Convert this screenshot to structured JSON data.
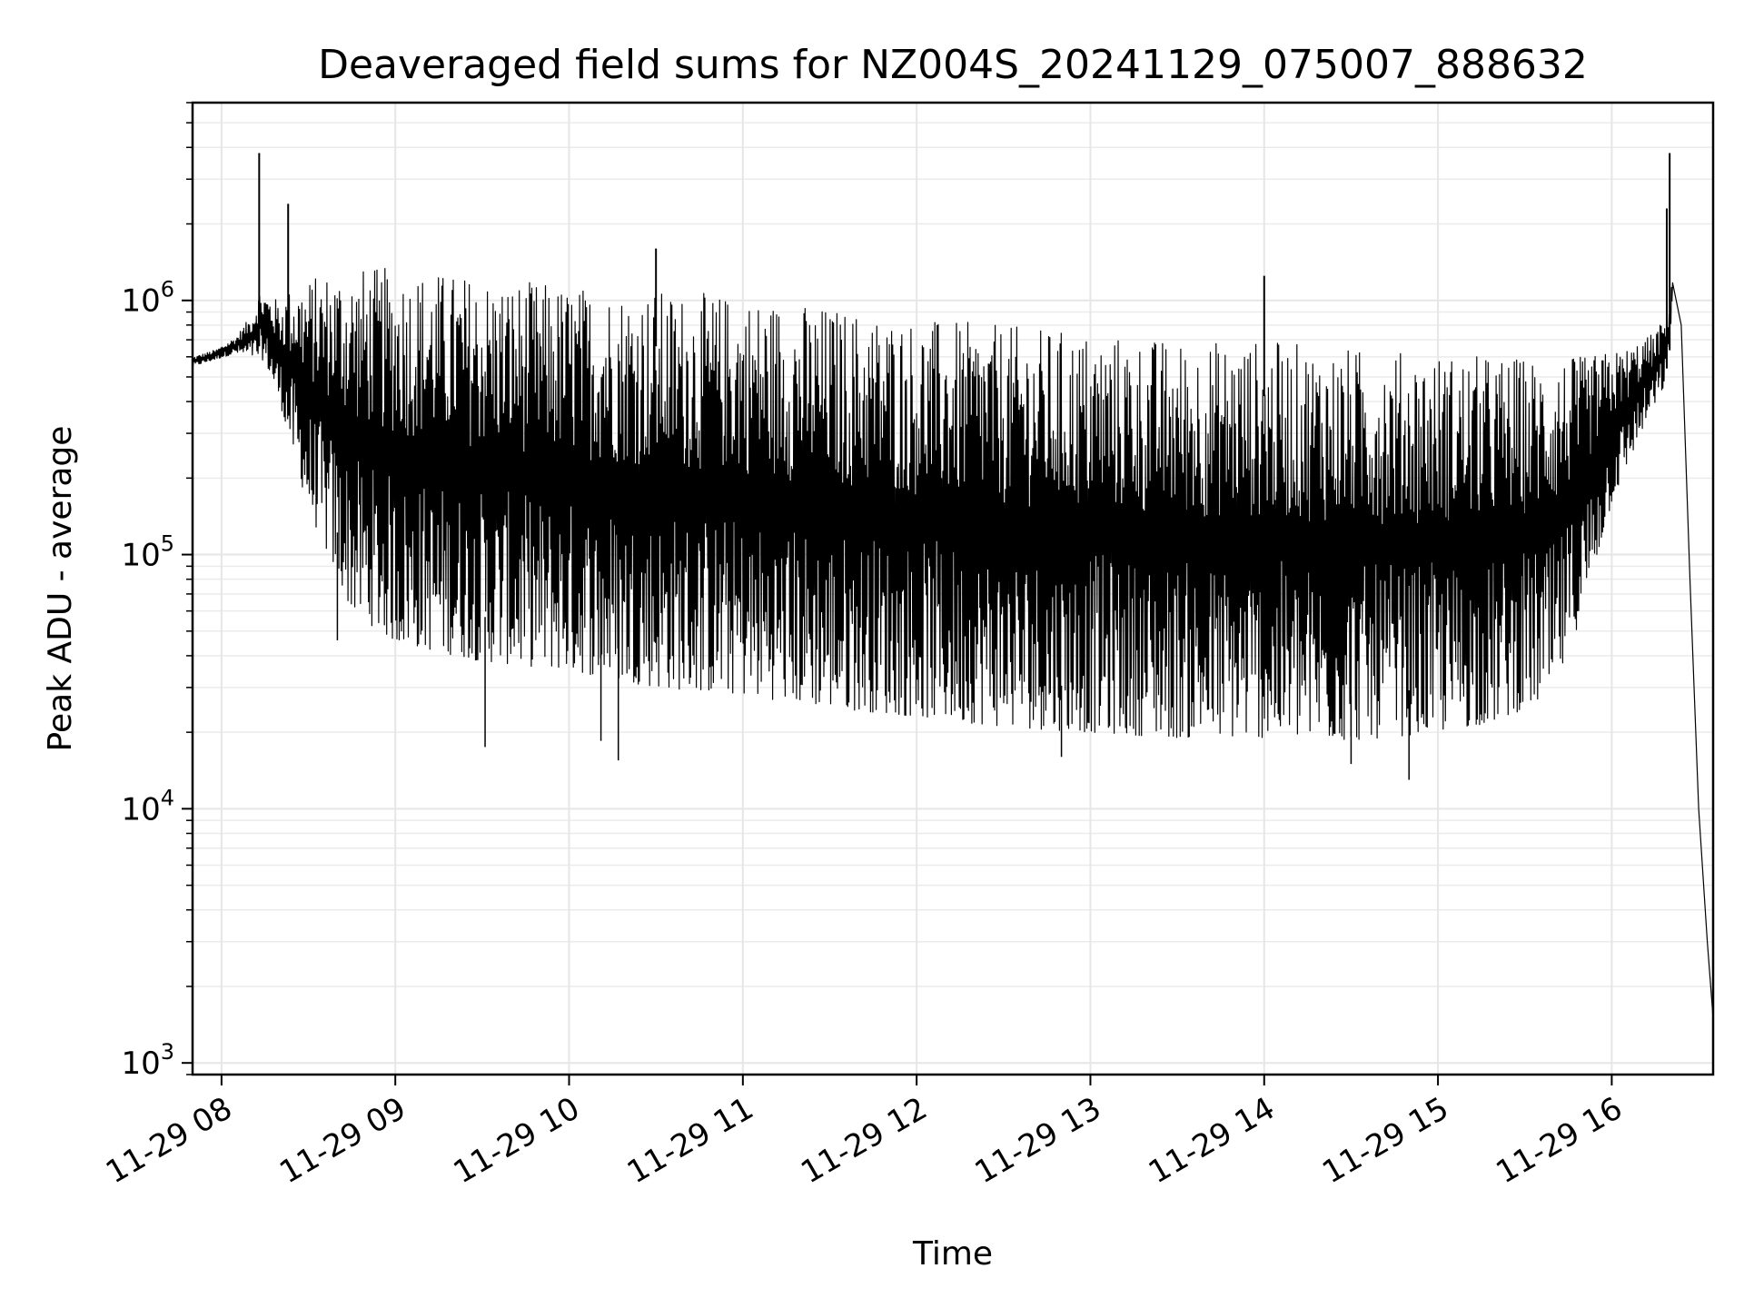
{
  "chart_data": {
    "type": "line",
    "title": "Deaveraged field sums for NZ004S_20241129_075007_888632",
    "xlabel": "Time",
    "ylabel": "Peak ADU - average",
    "yscale": "log",
    "ylim": [
      900,
      6000000
    ],
    "xlim": [
      "2024-11-29 07:50:00",
      "2024-11-29 16:35:00"
    ],
    "x_ticks": [
      {
        "t": "2024-11-29 08:00",
        "label": "11-29 08"
      },
      {
        "t": "2024-11-29 09:00",
        "label": "11-29 09"
      },
      {
        "t": "2024-11-29 10:00",
        "label": "11-29 10"
      },
      {
        "t": "2024-11-29 11:00",
        "label": "11-29 11"
      },
      {
        "t": "2024-11-29 12:00",
        "label": "11-29 12"
      },
      {
        "t": "2024-11-29 13:00",
        "label": "11-29 13"
      },
      {
        "t": "2024-11-29 14:00",
        "label": "11-29 14"
      },
      {
        "t": "2024-11-29 15:00",
        "label": "11-29 15"
      },
      {
        "t": "2024-11-29 16:00",
        "label": "11-29 16"
      }
    ],
    "y_ticks": [
      {
        "value": 1000,
        "base": "10",
        "exp": "3"
      },
      {
        "value": 10000,
        "base": "10",
        "exp": "4"
      },
      {
        "value": 100000,
        "base": "10",
        "exp": "5"
      },
      {
        "value": 1000000,
        "base": "10",
        "exp": "6"
      }
    ],
    "grid": true,
    "line_color": "#000000",
    "series": [
      {
        "upper_envelope": {
          "x": [
            "2024-11-29 07:50",
            "2024-11-29 07:58",
            "2024-11-29 08:05",
            "2024-11-29 08:11",
            "2024-11-29 08:13",
            "2024-11-29 08:20",
            "2024-11-29 08:25",
            "2024-11-29 08:40",
            "2024-11-29 09:00",
            "2024-11-29 09:30",
            "2024-11-29 10:00",
            "2024-11-29 10:30",
            "2024-11-29 11:00",
            "2024-11-29 11:30",
            "2024-11-29 12:00",
            "2024-11-29 12:30",
            "2024-11-29 13:00",
            "2024-11-29 13:30",
            "2024-11-29 14:00",
            "2024-11-29 14:30",
            "2024-11-29 15:00",
            "2024-11-29 15:30",
            "2024-11-29 15:50",
            "2024-11-29 16:05",
            "2024-11-29 16:15",
            "2024-11-29 16:19",
            "2024-11-29 16:21",
            "2024-11-29 16:24",
            "2024-11-29 16:27",
            "2024-11-29 16:30",
            "2024-11-29 16:33",
            "2024-11-29 16:35"
          ],
          "y": [
            600000,
            640000,
            720000,
            900000,
            1100000,
            1000000,
            1150000,
            1350000,
            1350000,
            1250000,
            1150000,
            1100000,
            1050000,
            950000,
            850000,
            800000,
            750000,
            700000,
            700000,
            650000,
            620000,
            600000,
            600000,
            650000,
            750000,
            900000,
            1250000,
            800000,
            80000,
            10000,
            3000,
            1500
          ]
        },
        "lower_envelope": {
          "x": [
            "2024-11-29 07:50",
            "2024-11-29 08:05",
            "2024-11-29 08:15",
            "2024-11-29 08:20",
            "2024-11-29 08:30",
            "2024-11-29 08:45",
            "2024-11-29 09:00",
            "2024-11-29 09:30",
            "2024-11-29 10:00",
            "2024-11-29 10:30",
            "2024-11-29 11:00",
            "2024-11-29 11:30",
            "2024-11-29 12:00",
            "2024-11-29 12:30",
            "2024-11-29 13:00",
            "2024-11-29 13:30",
            "2024-11-29 14:00",
            "2024-11-29 14:30",
            "2024-11-29 15:00",
            "2024-11-29 15:20",
            "2024-11-29 15:40",
            "2024-11-29 15:50",
            "2024-11-29 16:00",
            "2024-11-29 16:10",
            "2024-11-29 16:19",
            "2024-11-29 16:21"
          ],
          "y": [
            550000,
            620000,
            580000,
            400000,
            150000,
            60000,
            45000,
            38000,
            35000,
            30000,
            28000,
            25000,
            23000,
            21000,
            20000,
            19000,
            19000,
            18500,
            20000,
            22000,
            28000,
            60000,
            160000,
            300000,
            480000,
            1000000
          ]
        },
        "spikes_high": [
          {
            "x": "2024-11-29 08:13",
            "y": 3800000
          },
          {
            "x": "2024-11-29 08:23",
            "y": 2400000
          },
          {
            "x": "2024-11-29 10:30",
            "y": 1600000
          },
          {
            "x": "2024-11-29 14:00",
            "y": 1250000
          },
          {
            "x": "2024-11-29 16:19",
            "y": 2300000
          },
          {
            "x": "2024-11-29 16:20",
            "y": 3800000
          }
        ],
        "spikes_low": [
          {
            "x": "2024-11-29 08:40",
            "y": 46000
          },
          {
            "x": "2024-11-29 09:31",
            "y": 17500
          },
          {
            "x": "2024-11-29 10:11",
            "y": 18500
          },
          {
            "x": "2024-11-29 10:17",
            "y": 15500
          },
          {
            "x": "2024-11-29 12:50",
            "y": 16000
          },
          {
            "x": "2024-11-29 14:30",
            "y": 15000
          },
          {
            "x": "2024-11-29 14:50",
            "y": 13000
          }
        ]
      }
    ]
  }
}
